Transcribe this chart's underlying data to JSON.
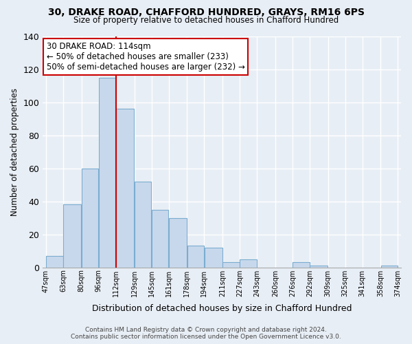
{
  "title": "30, DRAKE ROAD, CHAFFORD HUNDRED, GRAYS, RM16 6PS",
  "subtitle": "Size of property relative to detached houses in Chafford Hundred",
  "xlabel": "Distribution of detached houses by size in Chafford Hundred",
  "ylabel": "Number of detached properties",
  "bar_color": "#c8d8ec",
  "bar_edge_color": "#7aadd0",
  "bins": [
    47,
    63,
    80,
    96,
    112,
    129,
    145,
    161,
    178,
    194,
    211,
    227,
    243,
    260,
    276,
    292,
    309,
    325,
    341,
    358,
    374
  ],
  "bin_labels": [
    "47sqm",
    "63sqm",
    "80sqm",
    "96sqm",
    "112sqm",
    "129sqm",
    "145sqm",
    "161sqm",
    "178sqm",
    "194sqm",
    "211sqm",
    "227sqm",
    "243sqm",
    "260sqm",
    "276sqm",
    "292sqm",
    "309sqm",
    "325sqm",
    "341sqm",
    "358sqm",
    "374sqm"
  ],
  "values": [
    7,
    38,
    60,
    115,
    96,
    52,
    35,
    30,
    13,
    12,
    3,
    5,
    0,
    0,
    3,
    1,
    0,
    0,
    0,
    1
  ],
  "ylim": [
    0,
    140
  ],
  "yticks": [
    0,
    20,
    40,
    60,
    80,
    100,
    120,
    140
  ],
  "vline_x": 112,
  "vline_color": "#cc0000",
  "annotation_title": "30 DRAKE ROAD: 114sqm",
  "annotation_line1": "← 50% of detached houses are smaller (233)",
  "annotation_line2": "50% of semi-detached houses are larger (232) →",
  "annotation_box_color": "#ffffff",
  "annotation_box_edge": "#cc0000",
  "footer_line1": "Contains HM Land Registry data © Crown copyright and database right 2024.",
  "footer_line2": "Contains public sector information licensed under the Open Government Licence v3.0.",
  "background_color": "#e8eef5",
  "plot_bg_color": "#e8eef5"
}
